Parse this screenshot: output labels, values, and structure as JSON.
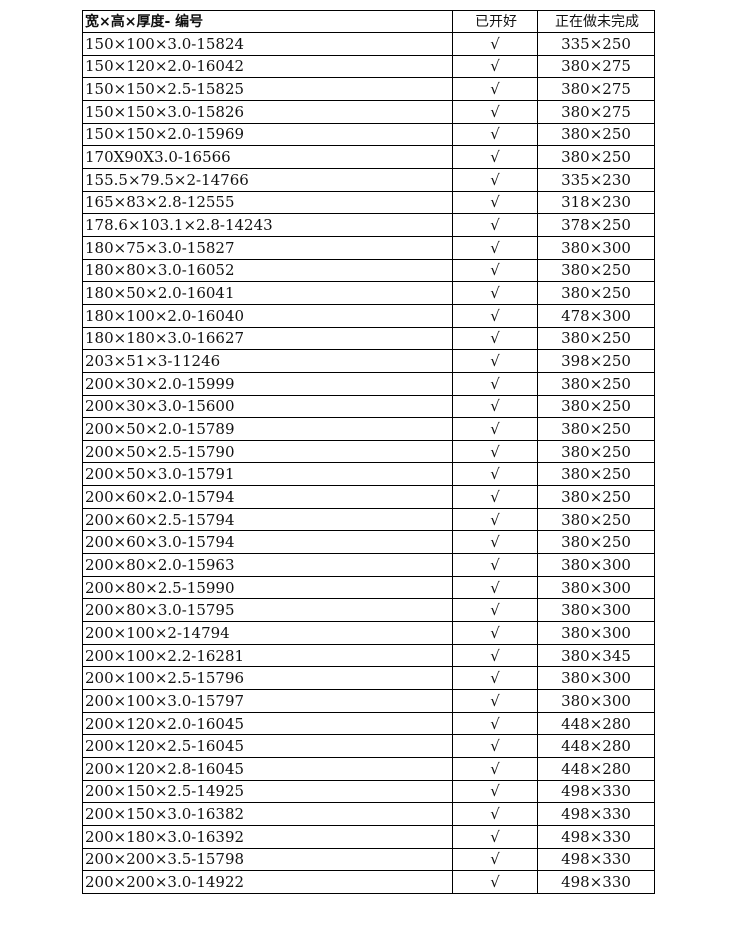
{
  "header": {
    "spec": "宽×高×厚度- 编号",
    "opened": "已开好",
    "pending": "正在做未完成"
  },
  "rows": [
    {
      "spec": "150×100×3.0-15824",
      "opened": "√",
      "pending": "335×250"
    },
    {
      "spec": "150×120×2.0-16042",
      "opened": "√",
      "pending": "380×275"
    },
    {
      "spec": "150×150×2.5-15825",
      "opened": "√",
      "pending": "380×275"
    },
    {
      "spec": "150×150×3.0-15826",
      "opened": "√",
      "pending": "380×275"
    },
    {
      "spec": "150×150×2.0-15969",
      "opened": "√",
      "pending": "380×250"
    },
    {
      "spec": "170X90X3.0-16566",
      "opened": "√",
      "pending": "380×250"
    },
    {
      "spec": "155.5×79.5×2-14766",
      "opened": "√",
      "pending": "335×230"
    },
    {
      "spec": "165×83×2.8-12555",
      "opened": "√",
      "pending": "318×230"
    },
    {
      "spec": "178.6×103.1×2.8-14243",
      "opened": "√",
      "pending": "378×250"
    },
    {
      "spec": "180×75×3.0-15827",
      "opened": "√",
      "pending": "380×300"
    },
    {
      "spec": "180×80×3.0-16052",
      "opened": "√",
      "pending": "380×250"
    },
    {
      "spec": "180×50×2.0-16041",
      "opened": "√",
      "pending": "380×250"
    },
    {
      "spec": "180×100×2.0-16040",
      "opened": "√",
      "pending": "478×300"
    },
    {
      "spec": "180×180×3.0-16627",
      "opened": "√",
      "pending": "380×250"
    },
    {
      "spec": "203×51×3-11246",
      "opened": "√",
      "pending": "398×250"
    },
    {
      "spec": "200×30×2.0-15999",
      "opened": "√",
      "pending": "380×250"
    },
    {
      "spec": "200×30×3.0-15600",
      "opened": "√",
      "pending": "380×250"
    },
    {
      "spec": "200×50×2.0-15789",
      "opened": "√",
      "pending": "380×250"
    },
    {
      "spec": "200×50×2.5-15790",
      "opened": "√",
      "pending": "380×250"
    },
    {
      "spec": "200×50×3.0-15791",
      "opened": "√",
      "pending": "380×250"
    },
    {
      "spec": "200×60×2.0-15794",
      "opened": "√",
      "pending": "380×250"
    },
    {
      "spec": "200×60×2.5-15794",
      "opened": "√",
      "pending": "380×250"
    },
    {
      "spec": "200×60×3.0-15794",
      "opened": "√",
      "pending": "380×250"
    },
    {
      "spec": "200×80×2.0-15963",
      "opened": "√",
      "pending": "380×300"
    },
    {
      "spec": "200×80×2.5-15990",
      "opened": "√",
      "pending": "380×300"
    },
    {
      "spec": "200×80×3.0-15795",
      "opened": "√",
      "pending": "380×300"
    },
    {
      "spec": "200×100×2-14794",
      "opened": "√",
      "pending": "380×300"
    },
    {
      "spec": "200×100×2.2-16281",
      "opened": "√",
      "pending": "380×345"
    },
    {
      "spec": "200×100×2.5-15796",
      "opened": "√",
      "pending": "380×300"
    },
    {
      "spec": "200×100×3.0-15797",
      "opened": "√",
      "pending": "380×300"
    },
    {
      "spec": "200×120×2.0-16045",
      "opened": "√",
      "pending": "448×280"
    },
    {
      "spec": "200×120×2.5-16045",
      "opened": "√",
      "pending": "448×280"
    },
    {
      "spec": "200×120×2.8-16045",
      "opened": "√",
      "pending": "448×280"
    },
    {
      "spec": "200×150×2.5-14925",
      "opened": "√",
      "pending": "498×330"
    },
    {
      "spec": "200×150×3.0-16382",
      "opened": "√",
      "pending": "498×330"
    },
    {
      "spec": "200×180×3.0-16392",
      "opened": "√",
      "pending": "498×330"
    },
    {
      "spec": "200×200×3.5-15798",
      "opened": "√",
      "pending": "498×330"
    },
    {
      "spec": "200×200×3.0-14922",
      "opened": "√",
      "pending": "498×330"
    }
  ]
}
